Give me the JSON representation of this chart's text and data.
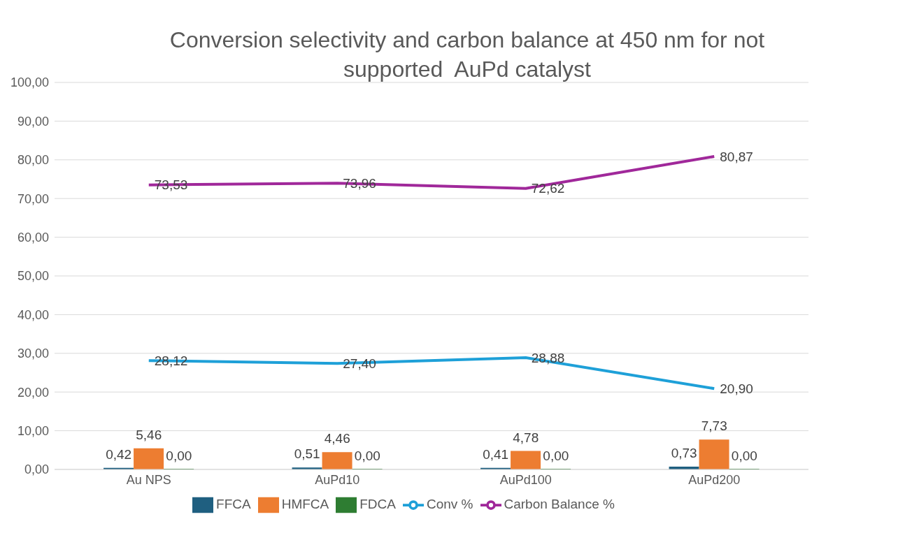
{
  "chart_data": {
    "type": "bar",
    "title": "Conversion selectivity and carbon balance at 450 nm for not supported  AuPd catalyst",
    "categories": [
      "Au NPS",
      "AuPd10",
      "AuPd100",
      "AuPd200"
    ],
    "series": [
      {
        "name": "FFCA",
        "color": "#1f5f80",
        "values": [
          0.42,
          0.51,
          0.41,
          0.73
        ],
        "value_labels": [
          "0,42",
          "0,51",
          "0,41",
          "0,73"
        ]
      },
      {
        "name": "HMFCA",
        "color": "#ed7d31",
        "values": [
          5.46,
          4.46,
          4.78,
          7.73
        ],
        "value_labels": [
          "5,46",
          "4,46",
          "4,78",
          "7,73"
        ]
      },
      {
        "name": "FDCA",
        "color": "#2e7d32",
        "values": [
          0,
          0,
          0,
          0
        ],
        "value_labels": [
          "0,00",
          "0,00",
          "0,00",
          "0,00"
        ]
      },
      {
        "name": "Conv %",
        "type": "line",
        "color": "#1ea0d8",
        "values": [
          28.12,
          27.4,
          28.88,
          20.9
        ],
        "value_labels": [
          "28,12",
          "27,40",
          "28,88",
          "20,90"
        ]
      },
      {
        "name": "Carbon Balance %",
        "type": "line",
        "color": "#a0289a",
        "values": [
          73.53,
          73.96,
          72.62,
          80.87
        ],
        "value_labels": [
          "73,53",
          "73,96",
          "72,62",
          "80,87"
        ]
      }
    ],
    "ylim": [
      0,
      100
    ],
    "yticks": [
      {
        "value": 0,
        "label": "0,00"
      },
      {
        "value": 10,
        "label": "10,00"
      },
      {
        "value": 20,
        "label": "20,00"
      },
      {
        "value": 30,
        "label": "30,00"
      },
      {
        "value": 40,
        "label": "40,00"
      },
      {
        "value": 50,
        "label": "50,00"
      },
      {
        "value": 60,
        "label": "60,00"
      },
      {
        "value": 70,
        "label": "70,00"
      },
      {
        "value": 80,
        "label": "80,00"
      },
      {
        "value": 90,
        "label": "90,00"
      },
      {
        "value": 100,
        "label": "100,00"
      }
    ],
    "grid": "y",
    "legend": "bottom",
    "marker": "none"
  }
}
